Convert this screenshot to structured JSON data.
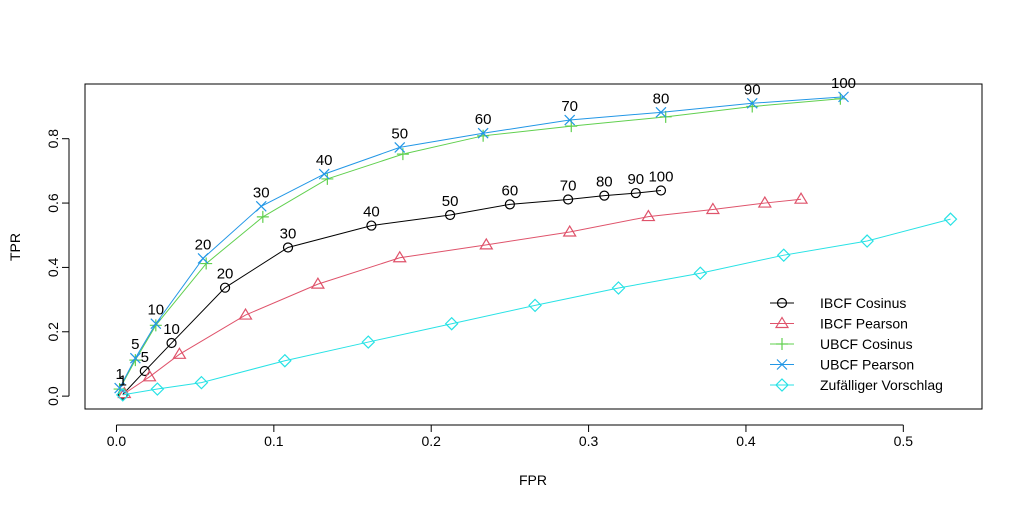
{
  "chart_data": {
    "type": "line",
    "title": "",
    "xlabel": "FPR",
    "ylabel": "TPR",
    "xlim": [
      -0.02,
      0.55
    ],
    "ylim": [
      -0.04,
      0.97
    ],
    "xticks": [
      0.0,
      0.1,
      0.2,
      0.3,
      0.4,
      0.5
    ],
    "xtick_labels": [
      "0.0",
      "0.1",
      "0.2",
      "0.3",
      "0.4",
      "0.5"
    ],
    "yticks": [
      0.0,
      0.2,
      0.4,
      0.6,
      0.8
    ],
    "ytick_labels": [
      "0.0",
      "0.2",
      "0.4",
      "0.6",
      "0.8"
    ],
    "grid": false,
    "legend_position": "bottom-right",
    "series": [
      {
        "name": "IBCF Cosinus",
        "color": "#000000",
        "marker": "circle",
        "x": [
          0.004,
          0.018,
          0.035,
          0.069,
          0.109,
          0.162,
          0.212,
          0.25,
          0.287,
          0.31,
          0.33,
          0.346
        ],
        "y": [
          0.005,
          0.078,
          0.165,
          0.337,
          0.462,
          0.53,
          0.563,
          0.596,
          0.611,
          0.623,
          0.631,
          0.639
        ],
        "point_labels": [
          "1",
          "5",
          "10",
          "20",
          "30",
          "40",
          "50",
          "60",
          "70",
          "80",
          "90",
          "100"
        ]
      },
      {
        "name": "IBCF Pearson",
        "color": "#DF536B",
        "marker": "triangle",
        "x": [
          0.005,
          0.021,
          0.04,
          0.082,
          0.128,
          0.18,
          0.235,
          0.288,
          0.338,
          0.379,
          0.412,
          0.435
        ],
        "y": [
          0.008,
          0.06,
          0.13,
          0.252,
          0.348,
          0.43,
          0.47,
          0.51,
          0.558,
          0.58,
          0.6,
          0.612
        ]
      },
      {
        "name": "UBCF Cosinus",
        "color": "#61D04F",
        "marker": "plus",
        "x": [
          0.002,
          0.012,
          0.025,
          0.057,
          0.093,
          0.134,
          0.182,
          0.233,
          0.289,
          0.349,
          0.404,
          0.46
        ],
        "y": [
          0.022,
          0.112,
          0.22,
          0.412,
          0.557,
          0.675,
          0.752,
          0.809,
          0.839,
          0.868,
          0.9,
          0.924
        ]
      },
      {
        "name": "UBCF Pearson",
        "color": "#2297E6",
        "marker": "x",
        "x": [
          0.002,
          0.012,
          0.025,
          0.055,
          0.092,
          0.132,
          0.18,
          0.233,
          0.288,
          0.346,
          0.404,
          0.462
        ],
        "y": [
          0.025,
          0.118,
          0.225,
          0.428,
          0.59,
          0.69,
          0.773,
          0.817,
          0.858,
          0.882,
          0.91,
          0.93
        ],
        "point_labels": [
          "1",
          "5",
          "10",
          "20",
          "30",
          "40",
          "50",
          "60",
          "70",
          "80",
          "90",
          "100"
        ]
      },
      {
        "name": "Zufälliger Vorschlag",
        "color": "#28E2E5",
        "marker": "diamond",
        "x": [
          0.004,
          0.026,
          0.054,
          0.107,
          0.16,
          0.213,
          0.266,
          0.319,
          0.371,
          0.424,
          0.477,
          0.53
        ],
        "y": [
          0.004,
          0.022,
          0.042,
          0.11,
          0.168,
          0.225,
          0.282,
          0.336,
          0.382,
          0.438,
          0.482,
          0.55
        ]
      }
    ]
  }
}
